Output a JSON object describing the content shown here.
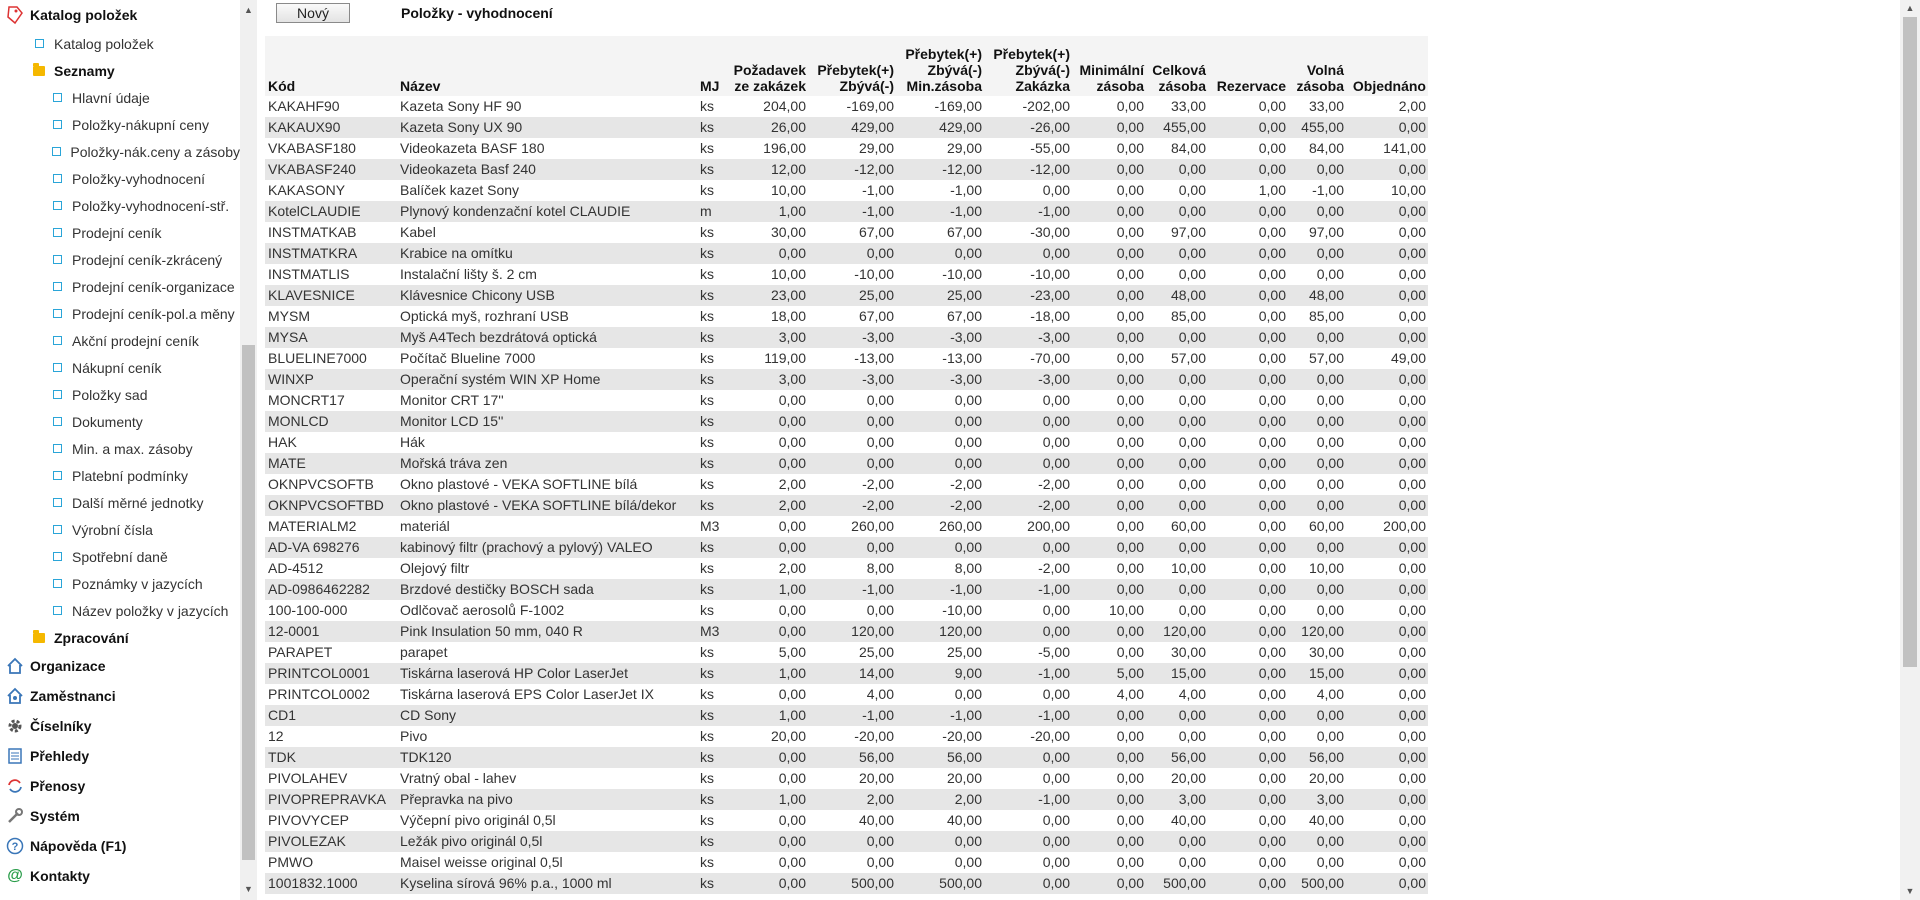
{
  "sidebar": {
    "catalog_root": "Katalog položek",
    "catalog_child": "Katalog položek",
    "lists_folder": "Seznamy",
    "lists": [
      "Hlavní údaje",
      "Položky-nákupní ceny",
      "Položky-nák.ceny a zásoby",
      "Položky-vyhodnocení",
      "Položky-vyhodnocení-stř.",
      "Prodejní ceník",
      "Prodejní ceník-zkrácený",
      "Prodejní ceník-organizace",
      "Prodejní ceník-pol.a měny",
      "Akční prodejní ceník",
      "Nákupní ceník",
      "Položky sad",
      "Dokumenty",
      "Min. a max. zásoby",
      "Platební podmínky",
      "Další měrné jednotky",
      "Výrobní čísla",
      "Spotřební daně",
      "Poznámky v jazycích",
      "Název položky v jazycích"
    ],
    "processing_folder": "Zpracování",
    "roots": [
      {
        "label": "Organizace",
        "icon": "home-icon"
      },
      {
        "label": "Zaměstnanci",
        "icon": "employees-icon"
      },
      {
        "label": "Číselníky",
        "icon": "gear-icon"
      },
      {
        "label": "Přehledy",
        "icon": "list-icon"
      },
      {
        "label": "Přenosy",
        "icon": "transfer-icon"
      },
      {
        "label": "Systém",
        "icon": "wrench-icon"
      },
      {
        "label": "Nápověda (F1)",
        "icon": "help-icon"
      },
      {
        "label": "Kontakty",
        "icon": "at-icon"
      }
    ]
  },
  "toolbar": {
    "new_label": "Nový",
    "title": "Položky - vyhodnocení"
  },
  "table": {
    "headers": {
      "kod": "Kód",
      "nazev": "Název",
      "mj": "MJ",
      "pozadavek_1": "Požadavek",
      "pozadavek_2": "ze zakázek",
      "p1_1": "Přebytek(+)",
      "p1_2": "Zbývá(-)",
      "p2_1": "Přebytek(+)",
      "p2_2": "Zbývá(-)",
      "p2_3": "Min.zásoba",
      "p3_1": "Přebytek(+)",
      "p3_2": "Zbývá(-)",
      "p3_3": "Zakázka",
      "min_1": "Minimální",
      "min_2": "zásoba",
      "cel_1": "Celková",
      "cel_2": "zásoba",
      "rez": "Rezervace",
      "vol_1": "Volná",
      "vol_2": "zásoba",
      "obj": "Objednáno"
    },
    "rows": [
      [
        "KAKAHF90",
        "Kazeta Sony HF 90",
        "ks",
        "204,00",
        "-169,00",
        "-169,00",
        "-202,00",
        "0,00",
        "33,00",
        "0,00",
        "33,00",
        "2,00"
      ],
      [
        "KAKAUX90",
        "Kazeta Sony UX 90",
        "ks",
        "26,00",
        "429,00",
        "429,00",
        "-26,00",
        "0,00",
        "455,00",
        "0,00",
        "455,00",
        "0,00"
      ],
      [
        "VKABASF180",
        "Videokazeta BASF 180",
        "ks",
        "196,00",
        "29,00",
        "29,00",
        "-55,00",
        "0,00",
        "84,00",
        "0,00",
        "84,00",
        "141,00"
      ],
      [
        "VKABASF240",
        "Videokazeta Basf 240",
        "ks",
        "12,00",
        "-12,00",
        "-12,00",
        "-12,00",
        "0,00",
        "0,00",
        "0,00",
        "0,00",
        "0,00"
      ],
      [
        "KAKASONY",
        "Balíček kazet Sony",
        "ks",
        "10,00",
        "-1,00",
        "-1,00",
        "0,00",
        "0,00",
        "0,00",
        "1,00",
        "-1,00",
        "10,00"
      ],
      [
        "KotelCLAUDIE",
        "Plynový kondenzační kotel CLAUDIE",
        "m",
        "1,00",
        "-1,00",
        "-1,00",
        "-1,00",
        "0,00",
        "0,00",
        "0,00",
        "0,00",
        "0,00"
      ],
      [
        "INSTMATKAB",
        "Kabel",
        "ks",
        "30,00",
        "67,00",
        "67,00",
        "-30,00",
        "0,00",
        "97,00",
        "0,00",
        "97,00",
        "0,00"
      ],
      [
        "INSTMATKRA",
        "Krabice na omítku",
        "ks",
        "0,00",
        "0,00",
        "0,00",
        "0,00",
        "0,00",
        "0,00",
        "0,00",
        "0,00",
        "0,00"
      ],
      [
        "INSTMATLIS",
        "Instalační lišty š. 2 cm",
        "ks",
        "10,00",
        "-10,00",
        "-10,00",
        "-10,00",
        "0,00",
        "0,00",
        "0,00",
        "0,00",
        "0,00"
      ],
      [
        "KLAVESNICE",
        "Klávesnice Chicony USB",
        "ks",
        "23,00",
        "25,00",
        "25,00",
        "-23,00",
        "0,00",
        "48,00",
        "0,00",
        "48,00",
        "0,00"
      ],
      [
        "MYSM",
        "Optická myš, rozhraní USB",
        "ks",
        "18,00",
        "67,00",
        "67,00",
        "-18,00",
        "0,00",
        "85,00",
        "0,00",
        "85,00",
        "0,00"
      ],
      [
        "MYSA",
        "Myš A4Tech bezdrátová optická",
        "ks",
        "3,00",
        "-3,00",
        "-3,00",
        "-3,00",
        "0,00",
        "0,00",
        "0,00",
        "0,00",
        "0,00"
      ],
      [
        "BLUELINE7000",
        "Počítač Blueline 7000",
        "ks",
        "119,00",
        "-13,00",
        "-13,00",
        "-70,00",
        "0,00",
        "57,00",
        "0,00",
        "57,00",
        "49,00"
      ],
      [
        "WINXP",
        "Operační systém WIN XP Home",
        "ks",
        "3,00",
        "-3,00",
        "-3,00",
        "-3,00",
        "0,00",
        "0,00",
        "0,00",
        "0,00",
        "0,00"
      ],
      [
        "MONCRT17",
        "Monitor CRT 17''",
        "ks",
        "0,00",
        "0,00",
        "0,00",
        "0,00",
        "0,00",
        "0,00",
        "0,00",
        "0,00",
        "0,00"
      ],
      [
        "MONLCD",
        "Monitor LCD 15''",
        "ks",
        "0,00",
        "0,00",
        "0,00",
        "0,00",
        "0,00",
        "0,00",
        "0,00",
        "0,00",
        "0,00"
      ],
      [
        "HAK",
        "Hák",
        "ks",
        "0,00",
        "0,00",
        "0,00",
        "0,00",
        "0,00",
        "0,00",
        "0,00",
        "0,00",
        "0,00"
      ],
      [
        "MATE",
        "Mořská tráva zen",
        "ks",
        "0,00",
        "0,00",
        "0,00",
        "0,00",
        "0,00",
        "0,00",
        "0,00",
        "0,00",
        "0,00"
      ],
      [
        "OKNPVCSOFTB",
        "Okno plastové - VEKA SOFTLINE bílá",
        "ks",
        "2,00",
        "-2,00",
        "-2,00",
        "-2,00",
        "0,00",
        "0,00",
        "0,00",
        "0,00",
        "0,00"
      ],
      [
        "OKNPVCSOFTBD",
        "Okno plastové - VEKA SOFTLINE bílá/dekor",
        "ks",
        "2,00",
        "-2,00",
        "-2,00",
        "-2,00",
        "0,00",
        "0,00",
        "0,00",
        "0,00",
        "0,00"
      ],
      [
        "MATERIALM2",
        "materiál",
        "M3",
        "0,00",
        "260,00",
        "260,00",
        "200,00",
        "0,00",
        "60,00",
        "0,00",
        "60,00",
        "200,00"
      ],
      [
        "AD-VA 698276",
        "kabinový filtr (prachový a pylový) VALEO",
        "ks",
        "0,00",
        "0,00",
        "0,00",
        "0,00",
        "0,00",
        "0,00",
        "0,00",
        "0,00",
        "0,00"
      ],
      [
        "AD-4512",
        "Olejový filtr",
        "ks",
        "2,00",
        "8,00",
        "8,00",
        "-2,00",
        "0,00",
        "10,00",
        "0,00",
        "10,00",
        "0,00"
      ],
      [
        "AD-0986462282",
        "Brzdové destičky BOSCH sada",
        "ks",
        "1,00",
        "-1,00",
        "-1,00",
        "-1,00",
        "0,00",
        "0,00",
        "0,00",
        "0,00",
        "0,00"
      ],
      [
        "100-100-000",
        "Odlčovač aerosolů F-1002",
        "ks",
        "0,00",
        "0,00",
        "-10,00",
        "0,00",
        "10,00",
        "0,00",
        "0,00",
        "0,00",
        "0,00"
      ],
      [
        "12-0001",
        "Pink Insulation 50 mm, 040 R",
        "M3",
        "0,00",
        "120,00",
        "120,00",
        "0,00",
        "0,00",
        "120,00",
        "0,00",
        "120,00",
        "0,00"
      ],
      [
        "PARAPET",
        "parapet",
        "ks",
        "5,00",
        "25,00",
        "25,00",
        "-5,00",
        "0,00",
        "30,00",
        "0,00",
        "30,00",
        "0,00"
      ],
      [
        "PRINTCOL0001",
        "Tiskárna laserová HP Color LaserJet",
        "ks",
        "1,00",
        "14,00",
        "9,00",
        "-1,00",
        "5,00",
        "15,00",
        "0,00",
        "15,00",
        "0,00"
      ],
      [
        "PRINTCOL0002",
        "Tiskárna laserová EPS Color LaserJet IX",
        "ks",
        "0,00",
        "4,00",
        "0,00",
        "0,00",
        "4,00",
        "4,00",
        "0,00",
        "4,00",
        "0,00"
      ],
      [
        "CD1",
        "CD Sony",
        "ks",
        "1,00",
        "-1,00",
        "-1,00",
        "-1,00",
        "0,00",
        "0,00",
        "0,00",
        "0,00",
        "0,00"
      ],
      [
        "12",
        "Pivo",
        "ks",
        "20,00",
        "-20,00",
        "-20,00",
        "-20,00",
        "0,00",
        "0,00",
        "0,00",
        "0,00",
        "0,00"
      ],
      [
        "TDK",
        "TDK120",
        "ks",
        "0,00",
        "56,00",
        "56,00",
        "0,00",
        "0,00",
        "56,00",
        "0,00",
        "56,00",
        "0,00"
      ],
      [
        "PIVOLAHEV",
        "Vratný obal - lahev",
        "ks",
        "0,00",
        "20,00",
        "20,00",
        "0,00",
        "0,00",
        "20,00",
        "0,00",
        "20,00",
        "0,00"
      ],
      [
        "PIVOPREPRAVKA",
        "Přepravka na pivo",
        "ks",
        "1,00",
        "2,00",
        "2,00",
        "-1,00",
        "0,00",
        "3,00",
        "0,00",
        "3,00",
        "0,00"
      ],
      [
        "PIVOVYCEP",
        "Výčepní pivo originál 0,5l",
        "ks",
        "0,00",
        "40,00",
        "40,00",
        "0,00",
        "0,00",
        "40,00",
        "0,00",
        "40,00",
        "0,00"
      ],
      [
        "PIVOLEZAK",
        "Ležák pivo originál 0,5l",
        "ks",
        "0,00",
        "0,00",
        "0,00",
        "0,00",
        "0,00",
        "0,00",
        "0,00",
        "0,00",
        "0,00"
      ],
      [
        "PMWO",
        "Maisel weisse original 0,5l",
        "ks",
        "0,00",
        "0,00",
        "0,00",
        "0,00",
        "0,00",
        "0,00",
        "0,00",
        "0,00",
        "0,00"
      ],
      [
        "1001832.1000",
        "Kyselina sírová 96% p.a., 1000 ml",
        "ks",
        "0,00",
        "500,00",
        "500,00",
        "0,00",
        "0,00",
        "500,00",
        "0,00",
        "500,00",
        "0,00"
      ]
    ]
  }
}
